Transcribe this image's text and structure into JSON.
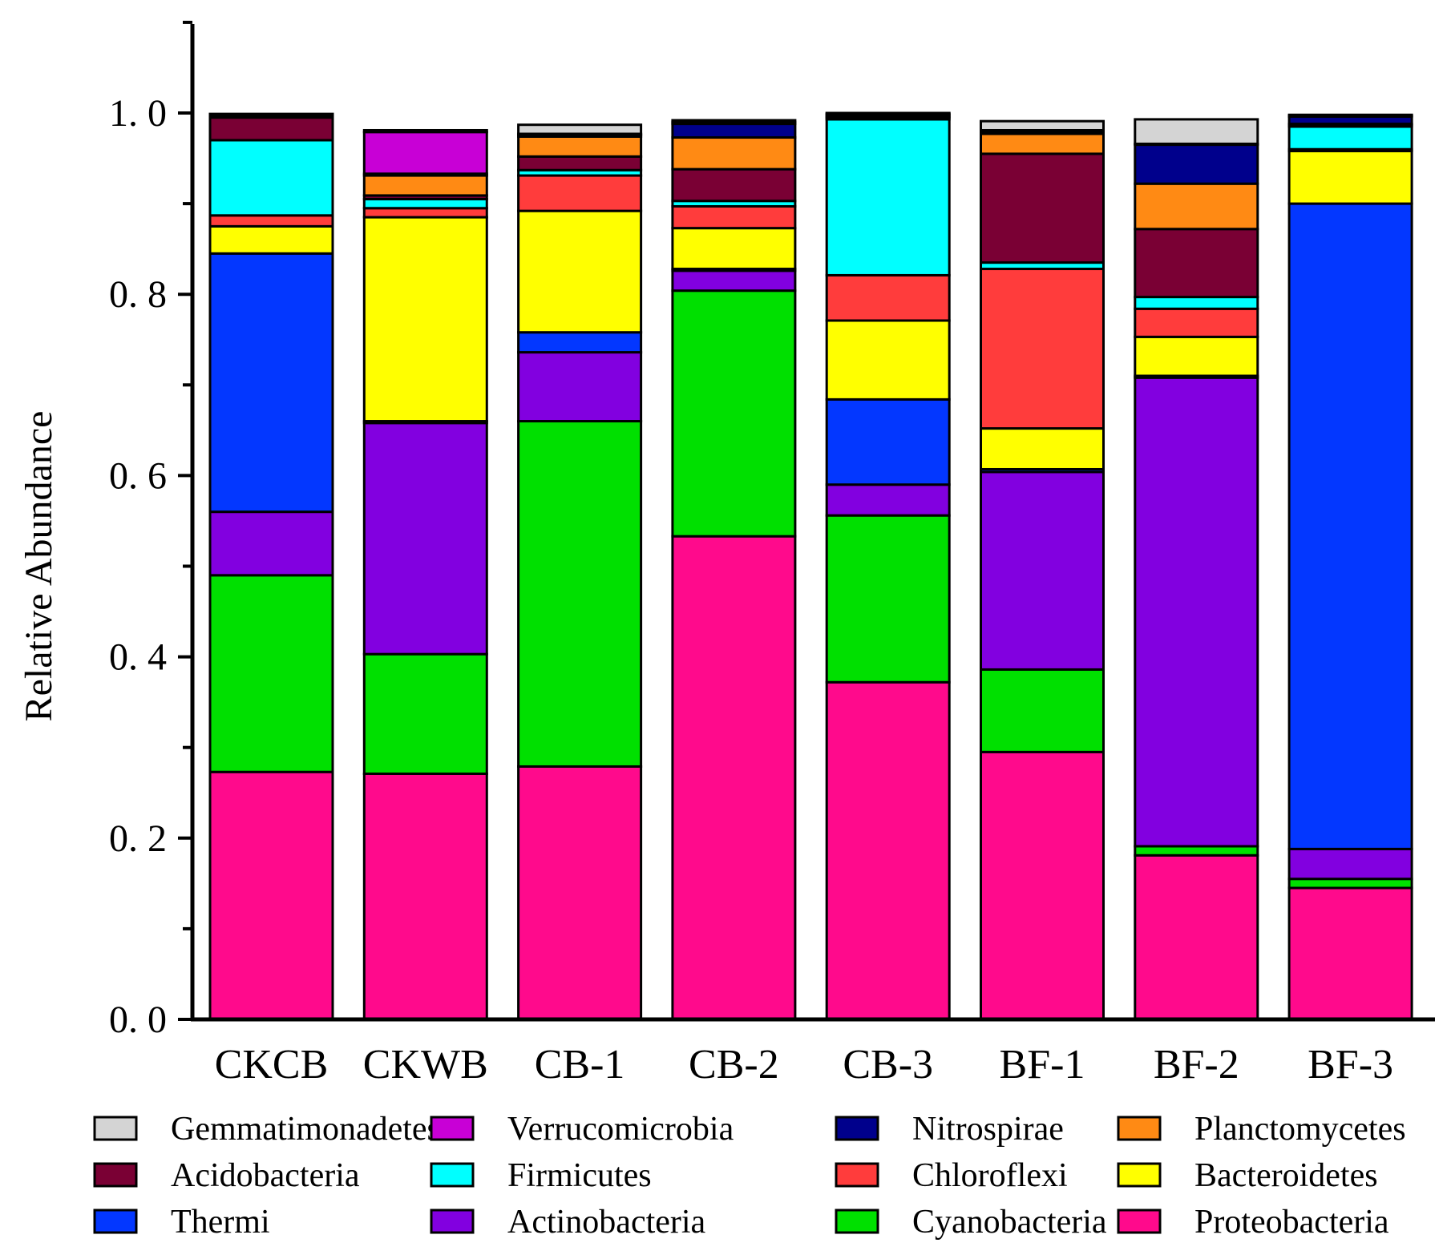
{
  "chart_data": {
    "type": "bar",
    "stacked": true,
    "ylabel": "Relative Abundance",
    "xlabel": "",
    "ylim": [
      0,
      1.1
    ],
    "yticks": [
      0.0,
      0.2,
      0.4,
      0.6,
      0.8,
      1.0
    ],
    "ytick_labels": [
      "0. 0",
      "0. 2",
      "0. 4",
      "0. 6",
      "0. 8",
      "1. 0"
    ],
    "categories": [
      "CKCB",
      "CKWB",
      "CB-1",
      "CB-2",
      "CB-3",
      "BF-1",
      "BF-2",
      "BF-3"
    ],
    "legend_position": "bottom",
    "grid": false,
    "series": [
      {
        "name": "Proteobacteria",
        "color": "#ff0a8c",
        "values": [
          0.273,
          0.271,
          0.279,
          0.533,
          0.372,
          0.295,
          0.181,
          0.145
        ]
      },
      {
        "name": "Cyanobacteria",
        "color": "#00e000",
        "values": [
          0.217,
          0.132,
          0.381,
          0.271,
          0.184,
          0.091,
          0.01,
          0.01
        ]
      },
      {
        "name": "Actinobacteria",
        "color": "#8200e0",
        "values": [
          0.07,
          0.255,
          0.076,
          0.022,
          0.034,
          0.218,
          0.517,
          0.033
        ]
      },
      {
        "name": "Thermi",
        "color": "#0337ff",
        "values": [
          0.285,
          0.002,
          0.022,
          0.002,
          0.094,
          0.003,
          0.002,
          0.712
        ]
      },
      {
        "name": "Bacteroidetes",
        "color": "#ffff00",
        "values": [
          0.03,
          0.225,
          0.134,
          0.045,
          0.087,
          0.045,
          0.043,
          0.058
        ]
      },
      {
        "name": "Chloroflexi",
        "color": "#ff3c3c",
        "values": [
          0.012,
          0.01,
          0.039,
          0.024,
          0.05,
          0.176,
          0.031,
          0.002
        ]
      },
      {
        "name": "Firmicutes",
        "color": "#00ffff",
        "values": [
          0.083,
          0.01,
          0.006,
          0.006,
          0.172,
          0.007,
          0.013,
          0.025
        ]
      },
      {
        "name": "Acidobacteria",
        "color": "#7a0034",
        "values": [
          0.025,
          0.004,
          0.015,
          0.035,
          0.002,
          0.12,
          0.075,
          0.002
        ]
      },
      {
        "name": "Planctomycetes",
        "color": "#ff8a14",
        "values": [
          0.001,
          0.022,
          0.022,
          0.035,
          0.001,
          0.022,
          0.05,
          0.001
        ]
      },
      {
        "name": "Nitrospirae",
        "color": "#00008c",
        "values": [
          0.001,
          0.002,
          0.002,
          0.015,
          0.002,
          0.002,
          0.043,
          0.008
        ]
      },
      {
        "name": "Verrucomicrobia",
        "color": "#c800d6",
        "values": [
          0.001,
          0.046,
          0.001,
          0.002,
          0.001,
          0.002,
          0.001,
          0.001
        ]
      },
      {
        "name": "Gemmatimonadetes",
        "color": "#d4d4d4",
        "values": [
          0.001,
          0.002,
          0.01,
          0.002,
          0.001,
          0.01,
          0.027,
          0.001
        ]
      }
    ],
    "legend_order": [
      "Gemmatimonadetes",
      "Verrucomicrobia",
      "Nitrospirae",
      "Planctomycetes",
      "Acidobacteria",
      "Firmicutes",
      "Chloroflexi",
      "Bacteroidetes",
      "Thermi",
      "Actinobacteria",
      "Cyanobacteria",
      "Proteobacteria"
    ]
  }
}
